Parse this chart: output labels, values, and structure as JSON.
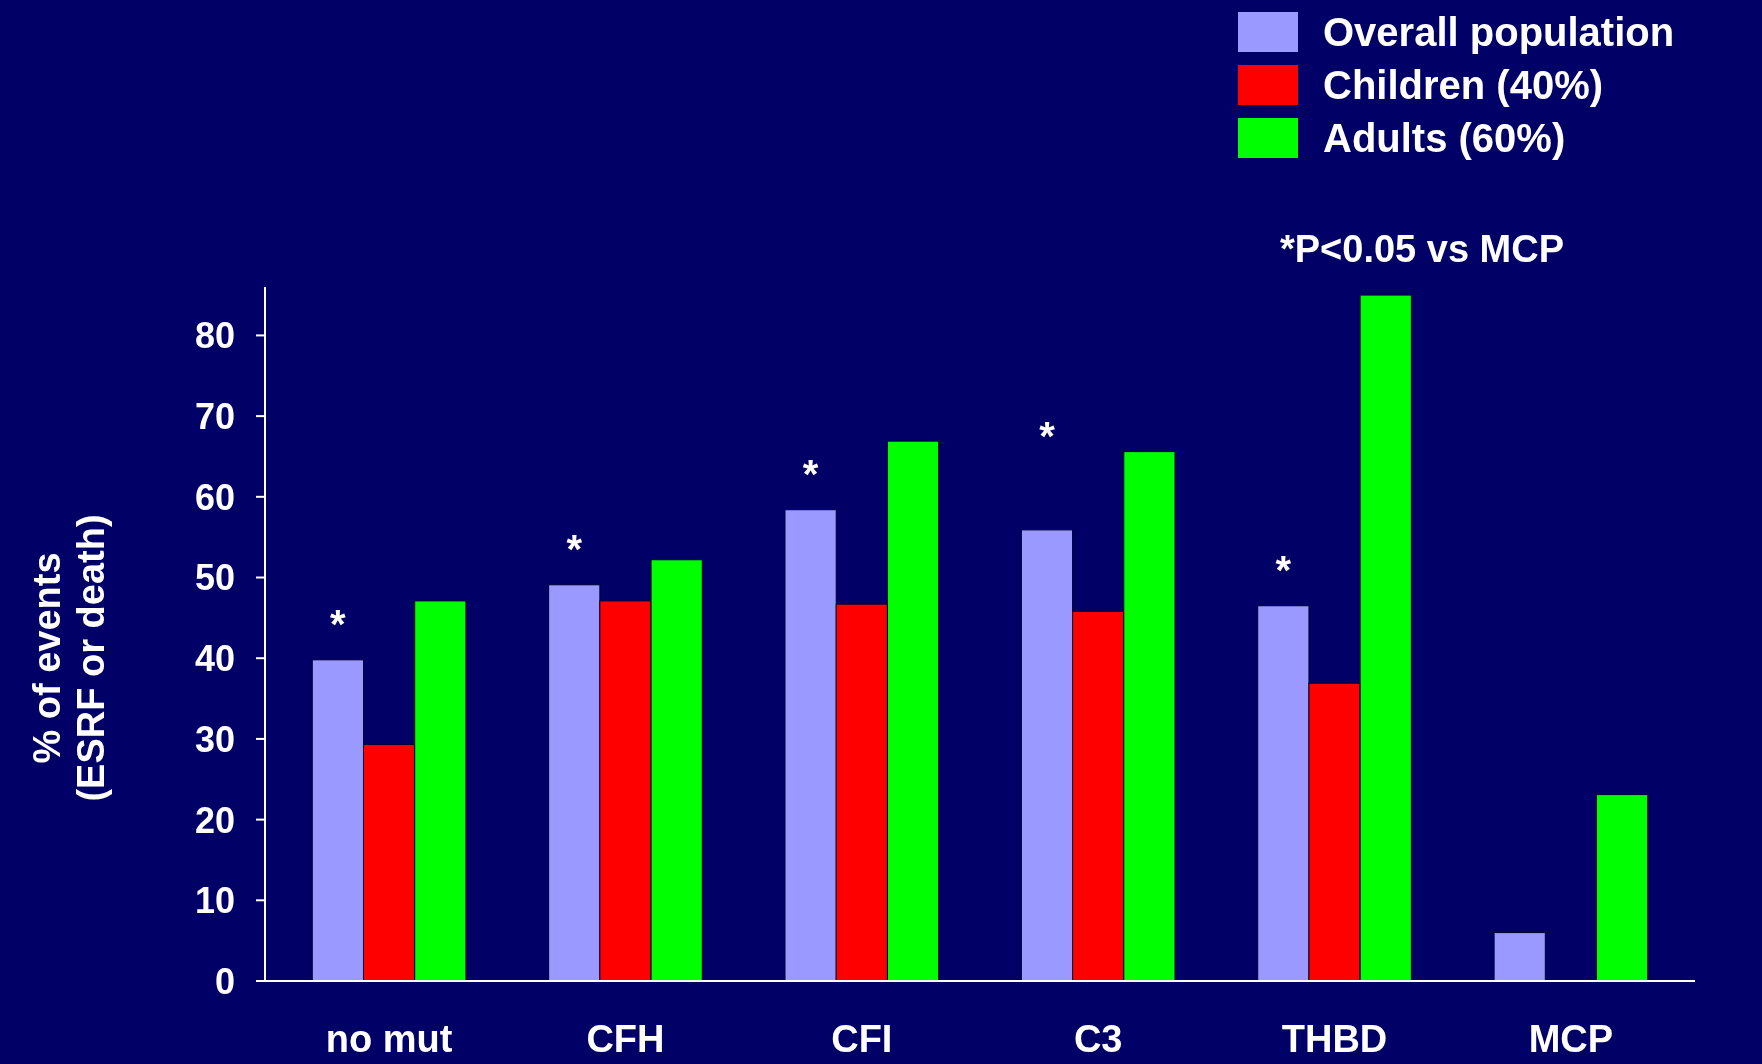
{
  "chart_data": {
    "type": "bar",
    "ylabel": "% of events\n(ESRF or death)",
    "categories": [
      "no mut",
      "CFH",
      "CFI",
      "C3",
      "THBD",
      "MCP"
    ],
    "series": [
      {
        "name": "Overall population",
        "color": "#9999ff",
        "values": [
          39.8,
          49.1,
          58.4,
          55.9,
          46.5,
          6.0
        ]
      },
      {
        "name": "Children (40%)",
        "color": "#ff0000",
        "values": [
          29.3,
          47.1,
          46.7,
          45.8,
          36.9,
          null
        ]
      },
      {
        "name": "Adults (60%)",
        "color": "#00ff00",
        "values": [
          47.1,
          52.2,
          66.9,
          65.6,
          85.0,
          23.1
        ]
      }
    ],
    "ylim": [
      0,
      86
    ],
    "yticks": [
      0,
      10,
      20,
      30,
      40,
      50,
      60,
      70,
      80
    ],
    "grid": false,
    "legend": "top right",
    "annotations": [
      "*P<0.05 vs MCP",
      "*",
      "*",
      "*",
      "*",
      "*"
    ]
  }
}
